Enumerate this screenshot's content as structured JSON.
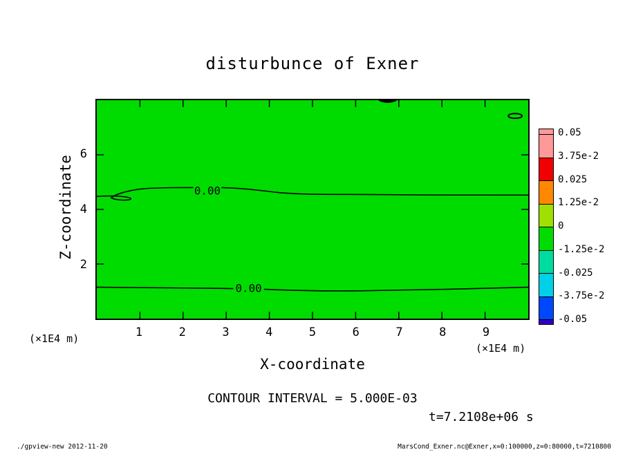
{
  "title": "disturbunce of Exner",
  "axes": {
    "y_label": "Z-coordinate",
    "y_ticks": [
      "6",
      "4",
      "2"
    ],
    "y_unit": "(×1E4 m)",
    "x_label": "X-coordinate",
    "x_ticks": [
      "1",
      "2",
      "3",
      "4",
      "5",
      "6",
      "7",
      "8",
      "9"
    ],
    "x_unit": "(×1E4 m)"
  },
  "plot": {
    "fill_color": "#00dc00",
    "contour_labels": [
      "0.00",
      "0.00"
    ]
  },
  "colorbar": {
    "labels": [
      "0.05",
      "3.75e-2",
      "0.025",
      "1.25e-2",
      "0",
      "-1.25e-2",
      "-0.025",
      "-3.75e-2",
      "-0.05"
    ],
    "colors": [
      "#ff9898",
      "#ff9898",
      "#f00000",
      "#ff8800",
      "#a0e000",
      "#00dc00",
      "#00dca0",
      "#00d0e8",
      "#0048ff",
      "#3000c0"
    ]
  },
  "annotations": {
    "contour_interval": "CONTOUR INTERVAL = 5.000E-03",
    "time": "t=7.2108e+06 s"
  },
  "footer": {
    "left": "./gpview-new  2012-11-20",
    "right": "MarsCond_Exner.nc@Exner,x=0:100000,z=0:80000,t=7210800"
  },
  "chart_data": {
    "type": "heatmap",
    "title": "disturbunce of Exner",
    "xlabel": "X-coordinate (×1E4 m)",
    "ylabel": "Z-coordinate (×1E4 m)",
    "xlim": [
      0,
      10
    ],
    "ylim": [
      0,
      8
    ],
    "x_ticks": [
      1,
      2,
      3,
      4,
      5,
      6,
      7,
      8,
      9
    ],
    "y_ticks": [
      2,
      4,
      6
    ],
    "tone_levels": [
      -0.05,
      -0.0375,
      -0.025,
      -0.0125,
      0,
      0.0125,
      0.025,
      0.0375,
      0.05
    ],
    "contour_interval": 0.005,
    "field_description": "entire domain filled with the green tone band containing 0 (|value| < 1.25e-2); zero-value contour lines run nearly horizontally at z ≈ 4.7 and z ≈ 1.1 (×1E4 m), with a small hook near x ≈ 0.4 on the upper line; tiny closed contours near the top boundary at x ≈ 6.7 and x ≈ 9.6",
    "zero_contours_z": [
      4.7,
      1.1
    ],
    "time": "t=7.2108e+06 s",
    "grid": false,
    "legend_position": "right colorbar"
  }
}
